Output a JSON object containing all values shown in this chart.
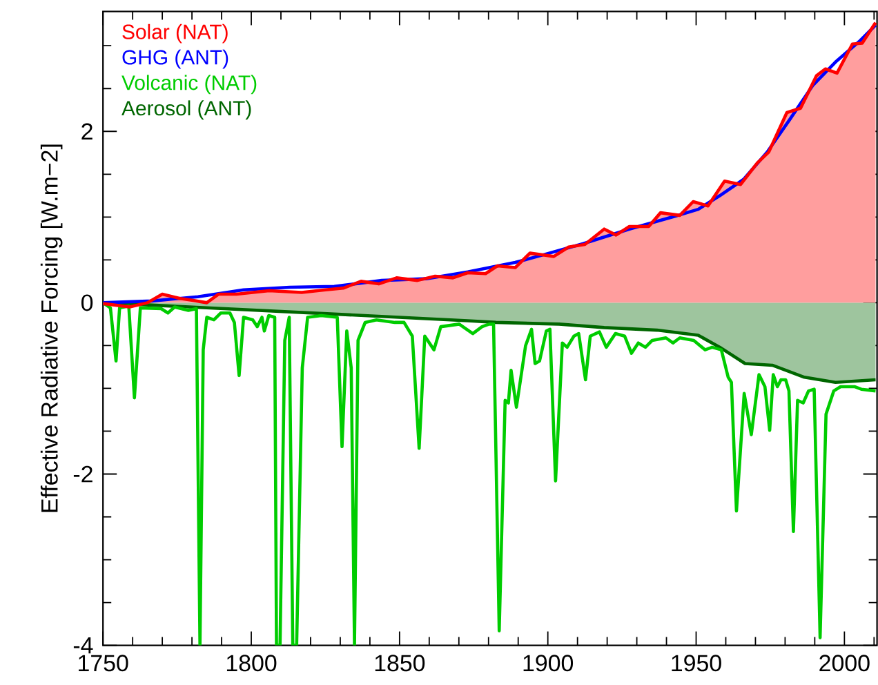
{
  "chart_data": {
    "type": "line",
    "ylabel": "Effective Radiative Forcing [W.m−2]",
    "xlim": [
      1750,
      2011
    ],
    "ylim": [
      -4,
      3.4
    ],
    "xticks": [
      1750,
      {
        "value": 1760,
        "label": null
      },
      {
        "value": 1770,
        "label": null
      },
      {
        "value": 1780,
        "label": null
      },
      {
        "value": 1790,
        "label": null
      },
      1800,
      {
        "value": 1810,
        "label": null
      },
      {
        "value": 1820,
        "label": null
      },
      {
        "value": 1830,
        "label": null
      },
      {
        "value": 1840,
        "label": null
      },
      1850,
      {
        "value": 1860,
        "label": null
      },
      {
        "value": 1870,
        "label": null
      },
      {
        "value": 1880,
        "label": null
      },
      {
        "value": 1890,
        "label": null
      },
      1900,
      {
        "value": 1910,
        "label": null
      },
      {
        "value": 1920,
        "label": null
      },
      {
        "value": 1930,
        "label": null
      },
      {
        "value": 1940,
        "label": null
      },
      1950,
      {
        "value": 1960,
        "label": null
      },
      {
        "value": 1970,
        "label": null
      },
      {
        "value": 1980,
        "label": null
      },
      {
        "value": 1990,
        "label": null
      },
      2000,
      {
        "value": 2010,
        "label": null
      }
    ],
    "yticks": [
      -4,
      {
        "value": -3.5,
        "label": null
      },
      {
        "value": -3,
        "label": null
      },
      {
        "value": -2.5,
        "label": null
      },
      -2,
      {
        "value": -1.5,
        "label": null
      },
      {
        "value": -1,
        "label": null
      },
      {
        "value": -0.5,
        "label": null
      },
      0,
      {
        "value": 0.5,
        "label": null
      },
      {
        "value": 1,
        "label": null
      },
      {
        "value": 1.5,
        "label": null
      },
      2,
      {
        "value": 2.5,
        "label": null
      },
      {
        "value": 3,
        "label": null
      }
    ],
    "legend": "top left",
    "grid": false,
    "series": [
      {
        "name": "Solar (NAT)",
        "type": "area",
        "color": "#ff0000",
        "x": [
          1750,
          1759,
          1765,
          1770,
          1776,
          1780,
          1785,
          1789,
          1795,
          1806,
          1817,
          1825,
          1831,
          1837,
          1843,
          1849,
          1856,
          1862,
          1868,
          1873,
          1879,
          1883,
          1889,
          1894,
          1902,
          1907,
          1912.5,
          1919,
          1923,
          1927.5,
          1934,
          1938,
          1944.5,
          1949,
          1954,
          1959.6,
          1965,
          1970.6,
          1974.5,
          1980.6,
          1985.2,
          1990.6,
          1993.6,
          1997.5,
          2002.7,
          2006,
          2010.5
        ],
        "values": [
          -0.01,
          -0.05,
          0,
          0.1,
          0.05,
          0.03,
          0,
          0.1,
          0.1,
          0.14,
          0.12,
          0.15,
          0.17,
          0.25,
          0.22,
          0.29,
          0.26,
          0.31,
          0.29,
          0.35,
          0.34,
          0.43,
          0.41,
          0.58,
          0.54,
          0.65,
          0.68,
          0.86,
          0.79,
          0.89,
          0.89,
          1.05,
          1.02,
          1.18,
          1.13,
          1.42,
          1.38,
          1.63,
          1.76,
          2.22,
          2.27,
          2.65,
          2.73,
          2.68,
          3.02,
          3.03,
          3.27
        ]
      },
      {
        "name": "GHG (ANT)",
        "color": "#0000ff",
        "x": [
          1750,
          1766.5,
          1782,
          1797.4,
          1813,
          1828,
          1844,
          1859,
          1873,
          1889,
          1896.5,
          1912,
          1927.5,
          1943,
          1950.7,
          1958,
          1966,
          1974,
          1981.6,
          1989.4,
          1997,
          2005,
          2010.5
        ],
        "values": [
          0,
          0.02,
          0.07,
          0.15,
          0.18,
          0.19,
          0.26,
          0.28,
          0.36,
          0.47,
          0.54,
          0.69,
          0.86,
          1.01,
          1.09,
          1.25,
          1.44,
          1.76,
          2.14,
          2.54,
          2.81,
          3.05,
          3.24
        ]
      },
      {
        "name": "Volcanic (NAT)",
        "color": "#00cc00",
        "x": [
          1750,
          1752.5,
          1754.4,
          1755.6,
          1758.7,
          1760.6,
          1762.6,
          1769.6,
          1771.9,
          1774.2,
          1778.8,
          1781.5,
          1782.7,
          1783.8,
          1785,
          1787.4,
          1789.7,
          1792.8,
          1794.3,
          1795.9,
          1797.4,
          1800.5,
          1802,
          1803.6,
          1804.4,
          1805.9,
          1807.9,
          1808.5,
          1809.7,
          1811.3,
          1812.8,
          1814,
          1815.3,
          1817.2,
          1819,
          1823.6,
          1829,
          1830.6,
          1832.2,
          1833.7,
          1834.8,
          1836,
          1838.4,
          1842.2,
          1848.4,
          1851.5,
          1854.3,
          1856.6,
          1858.5,
          1861.6,
          1863.9,
          1870.1,
          1874.7,
          1877.8,
          1880.2,
          1881.7,
          1883.6,
          1885.6,
          1886.7,
          1887.6,
          1889.4,
          1892.5,
          1894.5,
          1895.7,
          1897.2,
          1899.5,
          1900.7,
          1902.6,
          1904.9,
          1906.5,
          1908.8,
          1910.4,
          1912.7,
          1914.3,
          1917.4,
          1919.7,
          1922.8,
          1925.9,
          1928.2,
          1930.5,
          1932.9,
          1935.2,
          1939.8,
          1942.2,
          1944.5,
          1949.2,
          1953,
          1955.4,
          1958.5,
          1960.8,
          1961.9,
          1963.6,
          1966.2,
          1968.6,
          1971.2,
          1973.2,
          1974.8,
          1976,
          1977.4,
          1978.6,
          1980.2,
          1981.3,
          1982.8,
          1984.2,
          1986.1,
          1987.9,
          1989.8,
          1991.8,
          1993.8,
          1996.4,
          1998.7,
          2003.4,
          2005.7,
          2010.5
        ],
        "values": [
          0,
          -0.06,
          -0.68,
          -0.06,
          -0.04,
          -1.11,
          -0.06,
          -0.07,
          -0.12,
          -0.05,
          -0.09,
          -0.07,
          -4,
          -0.55,
          -0.17,
          -0.2,
          -0.12,
          -0.12,
          -0.23,
          -0.85,
          -0.17,
          -0.2,
          -0.28,
          -0.17,
          -0.33,
          -0.15,
          -0.17,
          -4,
          -4,
          -0.44,
          -0.17,
          -4,
          -4,
          -0.76,
          -0.17,
          -0.15,
          -0.17,
          -1.68,
          -0.33,
          -0.76,
          -4,
          -0.44,
          -0.23,
          -0.2,
          -0.23,
          -0.23,
          -0.39,
          -1.7,
          -0.39,
          -0.55,
          -0.28,
          -0.25,
          -0.36,
          -0.28,
          -0.25,
          -0.25,
          -3.83,
          -1.14,
          -1.17,
          -0.79,
          -1.22,
          -0.5,
          -0.31,
          -0.71,
          -0.68,
          -0.33,
          -0.31,
          -2.08,
          -0.47,
          -0.52,
          -0.39,
          -0.36,
          -0.9,
          -0.39,
          -0.34,
          -0.52,
          -0.36,
          -0.39,
          -0.59,
          -0.47,
          -0.52,
          -0.44,
          -0.41,
          -0.47,
          -0.41,
          -0.44,
          -0.55,
          -0.52,
          -0.55,
          -0.87,
          -0.93,
          -2.43,
          -1.06,
          -1.54,
          -0.84,
          -0.98,
          -1.49,
          -0.84,
          -0.98,
          -0.9,
          -0.9,
          -1.03,
          -2.67,
          -1.14,
          -1.17,
          -1.03,
          -1.01,
          -3.91,
          -1.3,
          -1.03,
          -0.98,
          -0.98,
          -1.01,
          -1.03
        ]
      },
      {
        "name": "Aerosol (ANT)",
        "type": "area",
        "color": "#006600",
        "x": [
          1750,
          1873,
          1882.5,
          1903.8,
          1919,
          1936.8,
          1950.7,
          1958,
          1966.5,
          1975.7,
          1986.5,
          1997,
          2010.5
        ],
        "values": [
          0,
          -0.21,
          -0.23,
          -0.25,
          -0.29,
          -0.32,
          -0.38,
          -0.52,
          -0.71,
          -0.73,
          -0.87,
          -0.93,
          -0.9
        ]
      }
    ]
  }
}
